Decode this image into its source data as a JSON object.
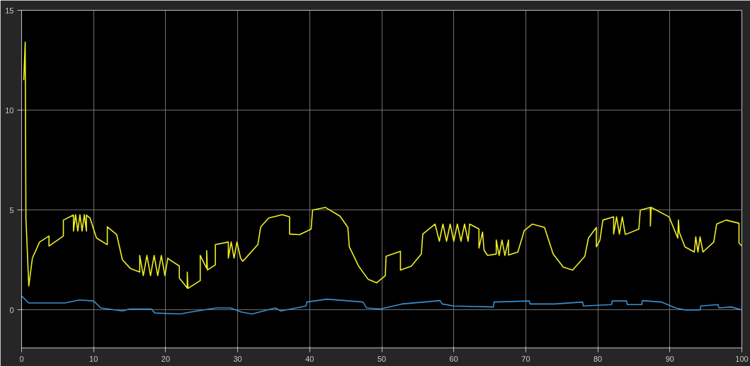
{
  "chart_data": {
    "type": "line",
    "xlim": [
      0,
      100
    ],
    "ylim": [
      -1.9,
      15
    ],
    "xticks": [
      0,
      10,
      20,
      30,
      40,
      50,
      60,
      70,
      80,
      90,
      100
    ],
    "yticks": [
      0,
      5,
      10,
      15
    ],
    "grid": true,
    "marker": "none",
    "line_style": "solid",
    "series": [
      {
        "color": "#f0f020",
        "x": [
          0.3,
          0.5,
          0.6,
          1.0,
          1.5,
          2.5,
          3.8,
          3.8,
          5,
          5.8,
          5.8,
          7.2,
          7.2,
          7.5,
          7.8,
          8.1,
          8.4,
          8.7,
          9.0,
          9.0,
          9.5,
          10.4,
          11.9,
          11.9,
          13.2,
          14.0,
          15.1,
          16.4,
          16.4,
          16.9,
          17.4,
          17.9,
          18.4,
          18.9,
          19.4,
          19.9,
          20.3,
          20.4,
          21.9,
          21.9,
          23.0,
          23.0,
          23.1,
          24.8,
          24.8,
          25.7,
          25.7,
          25.8,
          26.9,
          26.9,
          28.7,
          28.7,
          29.1,
          29.5,
          29.9,
          30.4,
          30.7,
          31,
          32.8,
          33.2,
          34.3,
          36.2,
          37.2,
          37.2,
          38.6,
          40.2,
          40.4,
          42.2,
          44.2,
          45.3,
          45.5,
          46.8,
          48.1,
          49.3,
          50.5,
          50.6,
          52.6,
          52.6,
          54.1,
          55.5,
          55.7,
          57.4,
          58,
          58.5,
          59,
          59.5,
          60,
          60.5,
          61,
          61.5,
          62,
          62.2,
          63.5,
          63.5,
          64.0,
          64.2,
          64.7,
          65.9,
          65.9,
          66.3,
          66.7,
          67.1,
          67.6,
          67.6,
          68.9,
          69.8,
          70.9,
          72.6,
          73.8,
          75.2,
          76.5,
          78.2,
          78.7,
          79.8,
          79.8,
          80.3,
          80.7,
          82.2,
          82.2,
          82.6,
          83.0,
          83.4,
          83.8,
          84.0,
          85.7,
          85.9,
          87.3,
          87.3,
          87.4,
          87.6,
          89.9,
          91.1,
          91.2,
          91.3,
          92.1,
          93.4,
          93.6,
          93.9,
          94.2,
          94.6,
          96.1,
          96.5,
          97.8,
          99.6,
          99.6,
          100
        ],
        "values": [
          11.5,
          13.4,
          4.6,
          1.2,
          2.6,
          3.4,
          3.7,
          3.2,
          3.5,
          3.7,
          4.5,
          4.75,
          3.95,
          4.77,
          3.95,
          4.77,
          3.95,
          4.77,
          3.95,
          4.75,
          4.6,
          3.6,
          3.27,
          4.16,
          3.77,
          2.51,
          2.08,
          1.9,
          2.73,
          1.72,
          2.73,
          1.72,
          2.73,
          1.72,
          2.73,
          1.72,
          2.6,
          2.55,
          2.2,
          1.6,
          1.1,
          1.9,
          1.08,
          1.47,
          2.73,
          2.08,
          2.97,
          2.0,
          2.26,
          3.27,
          3.4,
          2.6,
          3.4,
          2.6,
          3.4,
          2.6,
          2.44,
          2.55,
          3.27,
          4.16,
          4.6,
          4.77,
          4.66,
          3.8,
          3.77,
          4.05,
          5.0,
          5.13,
          4.7,
          4.13,
          3.16,
          2.19,
          1.54,
          1.36,
          1.72,
          2.69,
          2.94,
          2.0,
          2.19,
          2.8,
          3.8,
          4.3,
          3.44,
          4.3,
          3.44,
          4.3,
          3.44,
          4.3,
          3.44,
          4.3,
          3.44,
          4.3,
          4.05,
          3.1,
          3.9,
          3.0,
          2.73,
          2.8,
          3.5,
          2.73,
          3.5,
          2.73,
          3.5,
          2.75,
          2.9,
          3.98,
          4.3,
          4.13,
          2.8,
          2.15,
          2.0,
          2.69,
          3.6,
          4.13,
          3.16,
          3.5,
          4.5,
          4.66,
          3.8,
          4.66,
          3.8,
          4.66,
          3.8,
          3.8,
          4.05,
          5.0,
          5.13,
          4.2,
          5.13,
          5.1,
          4.66,
          3.6,
          4.5,
          3.9,
          3.16,
          2.9,
          3.66,
          2.9,
          3.66,
          2.9,
          3.4,
          4.3,
          4.5,
          4.34,
          3.35,
          3.2
        ]
      },
      {
        "color": "#3a8fd0",
        "x": [
          0,
          1,
          6,
          8,
          10,
          11,
          14,
          15,
          18,
          18.5,
          22,
          23.5,
          27,
          29,
          30.5,
          32,
          35.2,
          36,
          39.5,
          39.6,
          42.4,
          47.4,
          47.9,
          49.8,
          52.8,
          58.1,
          58.4,
          60,
          65.5,
          65.6,
          70.5,
          70.6,
          74,
          77.9,
          78,
          81.9,
          82,
          84,
          84.1,
          86.1,
          86.2,
          88.8,
          90.8,
          92.1,
          94.2,
          94.3,
          96.7,
          96.8,
          98.5,
          100
        ],
        "values": [
          0.7,
          0.35,
          0.35,
          0.5,
          0.45,
          0.1,
          -0.05,
          0.05,
          0.05,
          -0.15,
          -0.2,
          -0.1,
          0.1,
          0.1,
          -0.1,
          -0.2,
          0.1,
          -0.05,
          0.2,
          0.4,
          0.54,
          0.4,
          0.1,
          0.05,
          0.3,
          0.47,
          0.3,
          0.2,
          0.15,
          0.4,
          0.45,
          0.3,
          0.3,
          0.4,
          0.2,
          0.27,
          0.45,
          0.45,
          0.27,
          0.27,
          0.47,
          0.4,
          0.1,
          0.0,
          0.0,
          0.2,
          0.27,
          0.1,
          0.15,
          0.0
        ]
      }
    ]
  }
}
